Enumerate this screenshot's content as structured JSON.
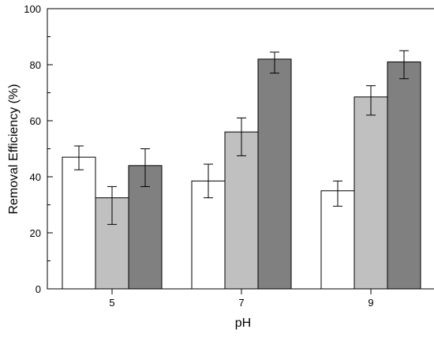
{
  "chart_data": {
    "type": "bar",
    "title": "",
    "xlabel": "pH",
    "ylabel": "Removal Efficiency (%)",
    "categories": [
      "5",
      "7",
      "9"
    ],
    "ylim": [
      0,
      100
    ],
    "yticks": [
      0,
      20,
      40,
      60,
      80,
      100
    ],
    "grid": false,
    "legend": "none",
    "series": [
      {
        "color": "#ffffff",
        "values": [
          47.0,
          38.5,
          35.0
        ],
        "errors": [
          [
            42.5,
            51.0
          ],
          [
            32.5,
            44.5
          ],
          [
            29.5,
            38.5
          ]
        ]
      },
      {
        "color": "#c0c0c0",
        "values": [
          32.5,
          56.0,
          68.5
        ],
        "errors": [
          [
            23.0,
            36.5
          ],
          [
            47.5,
            61.0
          ],
          [
            62.0,
            72.5
          ]
        ]
      },
      {
        "color": "#808080",
        "values": [
          44.0,
          82.0,
          81.0
        ],
        "errors": [
          [
            36.5,
            50.0
          ],
          [
            77.0,
            84.5
          ],
          [
            75.0,
            85.0
          ]
        ]
      }
    ]
  }
}
